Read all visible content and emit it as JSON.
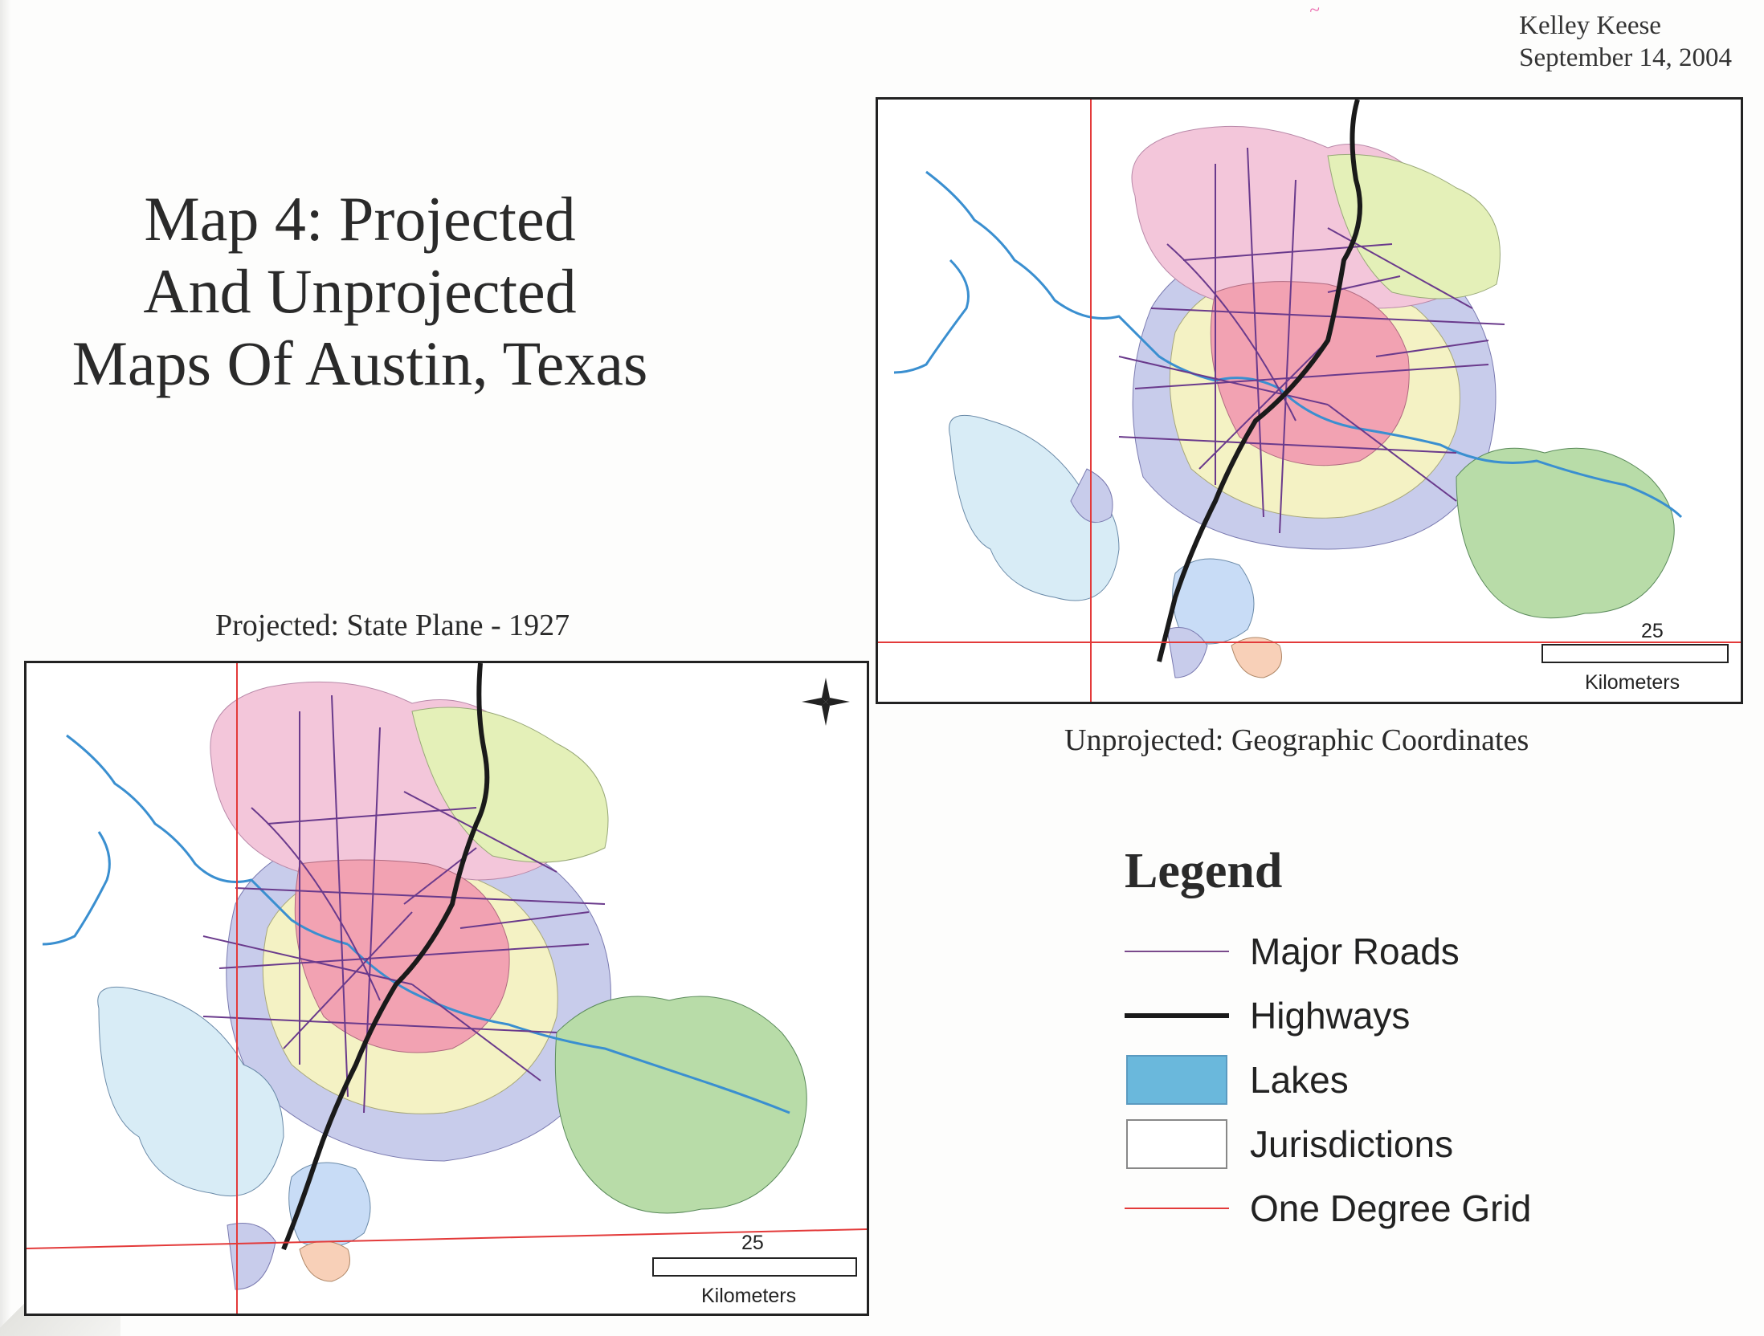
{
  "author": {
    "name": "Kelley Keese",
    "date": "September 14, 2004"
  },
  "title": {
    "line1": "Map 4: Projected",
    "line2": "And Unprojected",
    "line3": "Maps Of Austin, Texas"
  },
  "maps": {
    "projected": {
      "caption": "Projected: State Plane - 1927",
      "scale_value": "25",
      "scale_unit": "Kilometers",
      "north_arrow": "compass-rose-icon"
    },
    "unprojected": {
      "caption": "Unprojected: Geographic Coordinates",
      "scale_value": "25",
      "scale_unit": "Kilometers"
    }
  },
  "legend": {
    "title": "Legend",
    "items": [
      {
        "label": "Major Roads",
        "symbol": "thin-line",
        "color": "#7a4a8c"
      },
      {
        "label": "Highways",
        "symbol": "thick-line",
        "color": "#1a1a1a"
      },
      {
        "label": "Lakes",
        "symbol": "fill",
        "color": "#6ab8dc"
      },
      {
        "label": "Jurisdictions",
        "symbol": "outline",
        "color": "#ffffff"
      },
      {
        "label": "One Degree Grid",
        "symbol": "thin-line",
        "color": "#e33a3a"
      }
    ]
  },
  "colors": {
    "grid": "#e33a3a",
    "highway": "#1a1a1a",
    "roads": "#6a3a8c",
    "lakes": "#3a8fd0",
    "downtown": "#f2a2b2",
    "west": "#d8ecf6",
    "east": "#b8dca8",
    "ring_yellow": "#f4f2c4",
    "ring_blue": "#c8cceb",
    "north_pink": "#f3c6da",
    "north_green": "#e4f0b8"
  }
}
